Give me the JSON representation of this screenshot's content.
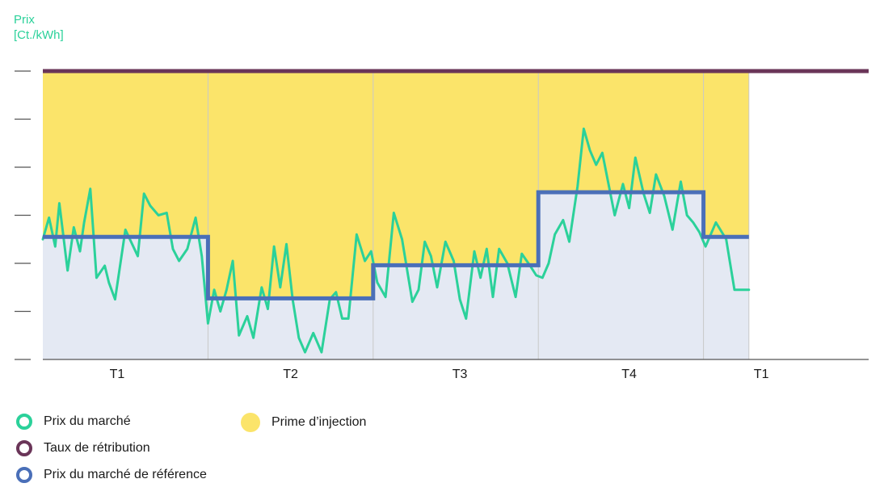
{
  "colors": {
    "market": "#2bd19a",
    "retribution": "#6a3558",
    "reference": "#4a6fb8",
    "premium": "#fbe46a",
    "belowRef": "#e4e9f3",
    "axis": "#555555",
    "divider": "#c8c8c8"
  },
  "chart_data": {
    "type": "line",
    "ylabel_line1": "Prix",
    "ylabel_line2": "[Ct./kWh]",
    "xlim": [
      0,
      20
    ],
    "ylim": [
      0,
      6
    ],
    "y_ticks": [
      0,
      1,
      2,
      3,
      4,
      5,
      6
    ],
    "period_boundaries": [
      0,
      4,
      8,
      12,
      16,
      17.1
    ],
    "period_labels": [
      {
        "label": "T1",
        "x": 1.8
      },
      {
        "label": "T2",
        "x": 6.0
      },
      {
        "label": "T3",
        "x": 10.1
      },
      {
        "label": "T4",
        "x": 14.2
      },
      {
        "label": "T1",
        "x": 17.4
      }
    ],
    "series": [
      {
        "name": "Taux de rétribution",
        "key": "retribution",
        "step": true,
        "x": [
          0,
          20
        ],
        "y": [
          6.0,
          6.0
        ]
      },
      {
        "name": "Prix du marché de référence",
        "key": "reference",
        "step": true,
        "x": [
          0,
          4,
          8,
          12,
          16,
          17.1
        ],
        "y": [
          2.55,
          1.27,
          1.96,
          3.48,
          2.55,
          2.55
        ]
      },
      {
        "name": "Prix du marché",
        "key": "market",
        "x": [
          0,
          0.15,
          0.3,
          0.4,
          0.6,
          0.75,
          0.9,
          1.0,
          1.15,
          1.3,
          1.5,
          1.6,
          1.75,
          2.0,
          2.3,
          2.45,
          2.6,
          2.8,
          3.0,
          3.15,
          3.3,
          3.5,
          3.7,
          3.85,
          4.0,
          4.15,
          4.3,
          4.45,
          4.6,
          4.75,
          4.95,
          5.1,
          5.3,
          5.45,
          5.6,
          5.75,
          5.9,
          6.05,
          6.2,
          6.35,
          6.55,
          6.75,
          6.95,
          7.1,
          7.25,
          7.4,
          7.6,
          7.8,
          7.95,
          8.1,
          8.3,
          8.5,
          8.7,
          8.95,
          9.1,
          9.25,
          9.4,
          9.55,
          9.75,
          9.95,
          10.1,
          10.25,
          10.45,
          10.6,
          10.75,
          10.9,
          11.05,
          11.25,
          11.45,
          11.6,
          11.8,
          11.95,
          12.1,
          12.25,
          12.4,
          12.6,
          12.75,
          12.95,
          13.1,
          13.25,
          13.4,
          13.55,
          13.7,
          13.85,
          14.05,
          14.2,
          14.35,
          14.55,
          14.7,
          14.85,
          15.05,
          15.25,
          15.45,
          15.6,
          15.75,
          15.9,
          16.05,
          16.3,
          16.55,
          16.75,
          17.1
        ],
        "y": [
          2.5,
          2.95,
          2.35,
          3.25,
          1.85,
          2.75,
          2.25,
          2.85,
          3.55,
          1.7,
          1.95,
          1.6,
          1.25,
          2.7,
          2.15,
          3.45,
          3.2,
          3.0,
          3.05,
          2.3,
          2.05,
          2.3,
          2.95,
          2.15,
          0.75,
          1.45,
          1.0,
          1.45,
          2.05,
          0.5,
          0.9,
          0.45,
          1.5,
          1.05,
          2.35,
          1.5,
          2.4,
          1.25,
          0.45,
          0.15,
          0.55,
          0.15,
          1.25,
          1.4,
          0.85,
          0.85,
          2.6,
          2.05,
          2.25,
          1.6,
          1.3,
          3.05,
          2.5,
          1.2,
          1.45,
          2.45,
          2.15,
          1.5,
          2.45,
          2.05,
          1.25,
          0.85,
          2.25,
          1.7,
          2.3,
          1.3,
          2.3,
          2.0,
          1.3,
          2.2,
          1.95,
          1.75,
          1.7,
          2.0,
          2.6,
          2.9,
          2.45,
          3.6,
          4.8,
          4.35,
          4.05,
          4.3,
          3.65,
          3.0,
          3.65,
          3.15,
          4.2,
          3.45,
          3.05,
          3.85,
          3.4,
          2.7,
          3.7,
          3.0,
          2.85,
          2.65,
          2.35,
          2.85,
          2.5,
          1.45,
          1.45
        ]
      }
    ],
    "areas": [
      {
        "name": "Prime d'injection",
        "between": [
          "reference",
          "retribution"
        ],
        "x_range": [
          0,
          17.1
        ]
      }
    ]
  },
  "legend": {
    "items": [
      {
        "label": "Prix du marché",
        "key": "market",
        "style": "ring"
      },
      {
        "label": "Taux de rétribution",
        "key": "retribution",
        "style": "dot"
      },
      {
        "label": "Prix du marché de référence",
        "key": "reference",
        "style": "dot"
      },
      {
        "label": "Prime d’injection",
        "key": "premium",
        "style": "fill"
      }
    ]
  }
}
